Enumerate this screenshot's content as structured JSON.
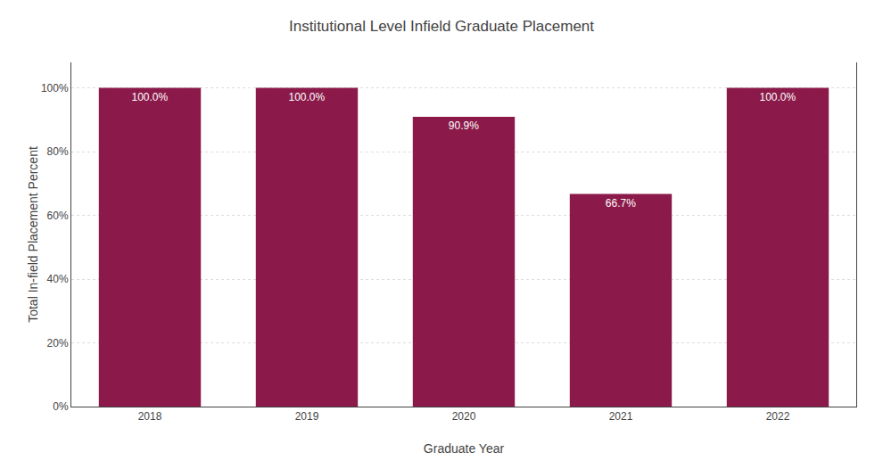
{
  "chart_data": {
    "type": "bar",
    "title": "Institutional Level Infield Graduate Placement",
    "xlabel": "Graduate Year",
    "ylabel": "Total In-field Placement Percent",
    "categories": [
      "2018",
      "2019",
      "2020",
      "2021",
      "2022"
    ],
    "values": [
      100.0,
      100.0,
      90.9,
      66.7,
      100.0
    ],
    "value_labels": [
      "100.0%",
      "100.0%",
      "90.9%",
      "66.7%",
      "100.0%"
    ],
    "color": "#8B1A4A",
    "ylim": [
      0,
      108
    ],
    "yticks": [
      {
        "value": 0,
        "label": "0%"
      },
      {
        "value": 20,
        "label": "20%"
      },
      {
        "value": 40,
        "label": "40%"
      },
      {
        "value": 60,
        "label": "60%"
      },
      {
        "value": 80,
        "label": "80%"
      },
      {
        "value": 100,
        "label": "100%"
      }
    ],
    "grid": true,
    "data_labels": true
  }
}
